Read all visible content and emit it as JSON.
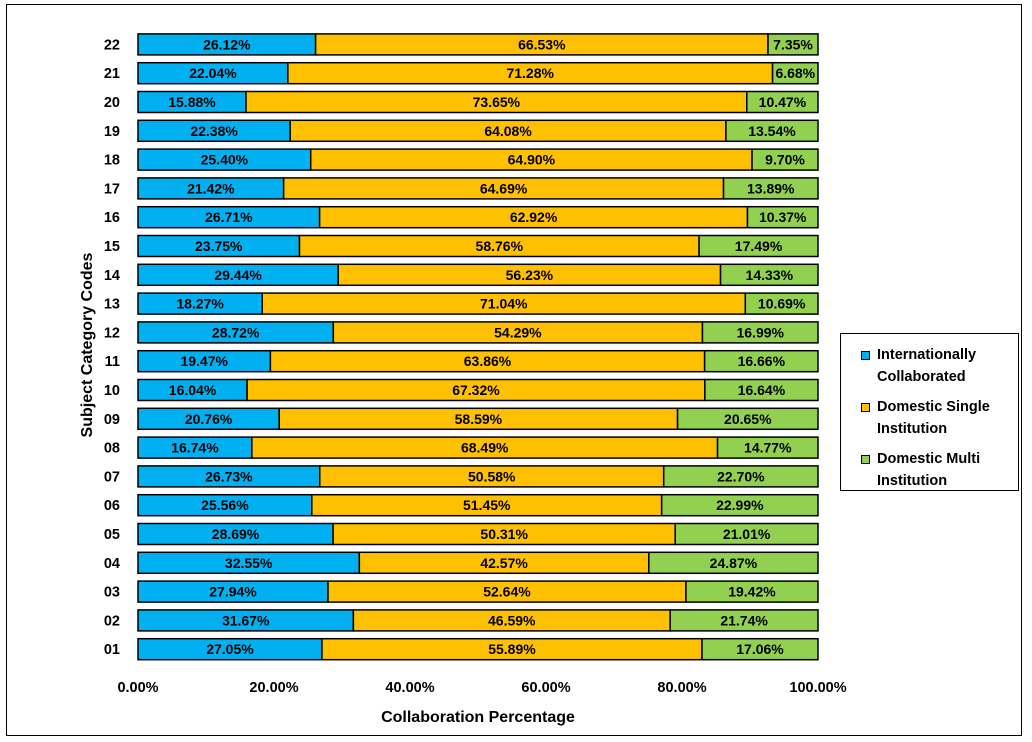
{
  "chart_data": {
    "type": "bar",
    "orientation": "horizontal",
    "stacked": true,
    "xlabel": "Collaboration Percentage",
    "ylabel": "Subject Category Codes",
    "xlim": [
      0,
      100
    ],
    "x_ticks": [
      "0.00%",
      "20.00%",
      "40.00%",
      "60.00%",
      "80.00%",
      "100.00%"
    ],
    "categories": [
      "01",
      "02",
      "03",
      "04",
      "05",
      "06",
      "07",
      "08",
      "09",
      "10",
      "11",
      "12",
      "13",
      "14",
      "15",
      "16",
      "17",
      "18",
      "19",
      "20",
      "21",
      "22"
    ],
    "series": [
      {
        "name": "Internationally Collaborated",
        "color": "#00b0f0",
        "values": [
          27.05,
          31.67,
          27.94,
          32.55,
          28.69,
          25.56,
          26.73,
          16.74,
          20.76,
          16.04,
          19.47,
          28.72,
          18.27,
          29.44,
          23.75,
          26.71,
          21.42,
          25.4,
          22.38,
          15.88,
          22.04,
          26.12
        ],
        "labels": [
          "27.05%",
          "31.67%",
          "27.94%",
          "32.55%",
          "28.69%",
          "25.56%",
          "26.73%",
          "16.74%",
          "20.76%",
          "16.04%",
          "19.47%",
          "28.72%",
          "18.27%",
          "29.44%",
          "23.75%",
          "26.71%",
          "21.42%",
          "25.40%",
          "22.38%",
          "15.88%",
          "22.04%",
          "26.12%"
        ]
      },
      {
        "name": "Domestic Single Institution",
        "color": "#ffc000",
        "values": [
          55.89,
          46.59,
          52.64,
          42.57,
          50.31,
          51.45,
          50.58,
          68.49,
          58.59,
          67.32,
          63.86,
          54.29,
          71.04,
          56.23,
          58.76,
          62.92,
          64.69,
          64.9,
          64.08,
          73.65,
          71.28,
          66.53
        ],
        "labels": [
          "55.89%",
          "46.59%",
          "52.64%",
          "42.57%",
          "50.31%",
          "51.45%",
          "50.58%",
          "68.49%",
          "58.59%",
          "67.32%",
          "63.86%",
          "54.29%",
          "71.04%",
          "56.23%",
          "58.76%",
          "62.92%",
          "64.69%",
          "64.90%",
          "64.08%",
          "73.65%",
          "71.28%",
          "66.53%"
        ]
      },
      {
        "name": "Domestic Multi Institution",
        "color": "#92d050",
        "values": [
          17.06,
          21.74,
          19.42,
          24.87,
          21.01,
          22.99,
          22.7,
          14.77,
          20.65,
          16.64,
          16.66,
          16.99,
          10.69,
          14.33,
          17.49,
          10.37,
          13.89,
          9.7,
          13.54,
          10.47,
          6.68,
          7.35
        ],
        "labels": [
          "17.06%",
          "21.74%",
          "19.42%",
          "24.87%",
          "21.01%",
          "22.99%",
          "22.70%",
          "14.77%",
          "20.65%",
          "16.64%",
          "16.66%",
          "16.99%",
          "10.69%",
          "14.33%",
          "17.49%",
          "10.37%",
          "13.89%",
          "9.70%",
          "13.54%",
          "10.47%",
          "6.68%",
          "7.35%"
        ]
      }
    ],
    "legend": {
      "position": "right",
      "items": [
        {
          "line1": "Internationally",
          "line2": "Collaborated"
        },
        {
          "line1": "Domestic Single",
          "line2": "Institution"
        },
        {
          "line1": "Domestic Multi",
          "line2": "Institution"
        }
      ]
    }
  }
}
